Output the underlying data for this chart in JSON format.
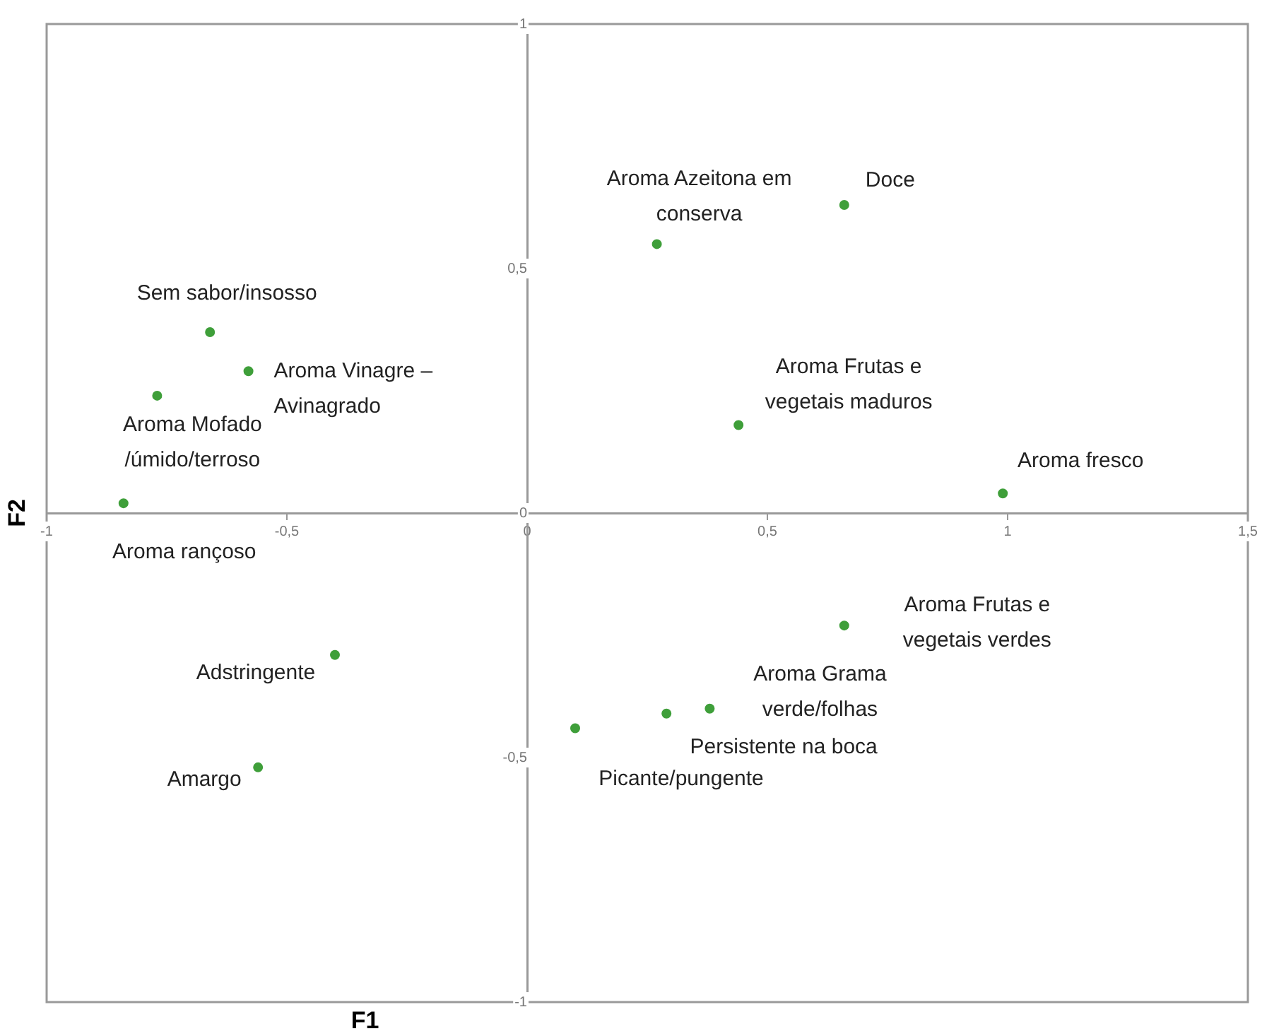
{
  "chart_data": {
    "type": "scatter",
    "xlabel": "F1",
    "ylabel": "F2",
    "x": [
      -0.66,
      -0.58,
      -0.77,
      -0.84,
      0.27,
      0.66,
      0.44,
      0.99,
      -0.4,
      -0.56,
      0.1,
      0.66,
      0.38,
      0.29
    ],
    "values": [
      0.37,
      0.29,
      0.24,
      0.02,
      0.55,
      0.63,
      0.18,
      0.04,
      -0.29,
      -0.52,
      -0.44,
      -0.23,
      -0.4,
      -0.41
    ],
    "color": "#3f9f3a",
    "marker": "circle",
    "grid": false,
    "legend": false,
    "xlim": [
      -1,
      1.5
    ],
    "ylim": [
      -1,
      1
    ],
    "xticks": [
      -1,
      {
        "value": -0.5,
        "label": "-0,5"
      },
      0,
      {
        "value": 0.5,
        "label": "0,5"
      },
      1,
      {
        "value": 1.5,
        "label": "1,5"
      }
    ],
    "yticks": [
      -1,
      {
        "value": -0.5,
        "label": "-0,5"
      },
      0,
      {
        "value": 0.5,
        "label": "0,5"
      },
      1
    ],
    "annotations": [
      {
        "text": "Sem sabor/insosso",
        "x": -0.66,
        "y": 0.37
      },
      {
        "text": "Aroma Vinagre – Avinagrado",
        "x": -0.58,
        "y": 0.29
      },
      {
        "text": "Aroma Mofado /úmido/terroso",
        "x": -0.77,
        "y": 0.24
      },
      {
        "text": "Aroma rançoso",
        "x": -0.84,
        "y": 0.02
      },
      {
        "text": "Aroma Azeitona em conserva",
        "x": 0.27,
        "y": 0.55
      },
      {
        "text": "Doce",
        "x": 0.66,
        "y": 0.63
      },
      {
        "text": "Aroma Frutas e vegetais maduros",
        "x": 0.44,
        "y": 0.18
      },
      {
        "text": "Aroma fresco",
        "x": 0.99,
        "y": 0.04
      },
      {
        "text": "Adstringente",
        "x": -0.4,
        "y": -0.29
      },
      {
        "text": "Amargo",
        "x": -0.56,
        "y": -0.52
      },
      {
        "text": "Picante/pungente",
        "x": 0.1,
        "y": -0.44
      },
      {
        "text": "Aroma Frutas e vegetais verdes",
        "x": 0.66,
        "y": -0.23
      },
      {
        "text": "Aroma Grama verde/folhas",
        "x": 0.38,
        "y": -0.4
      },
      {
        "text": "Persistente na boca",
        "x": 0.29,
        "y": -0.41
      }
    ]
  }
}
